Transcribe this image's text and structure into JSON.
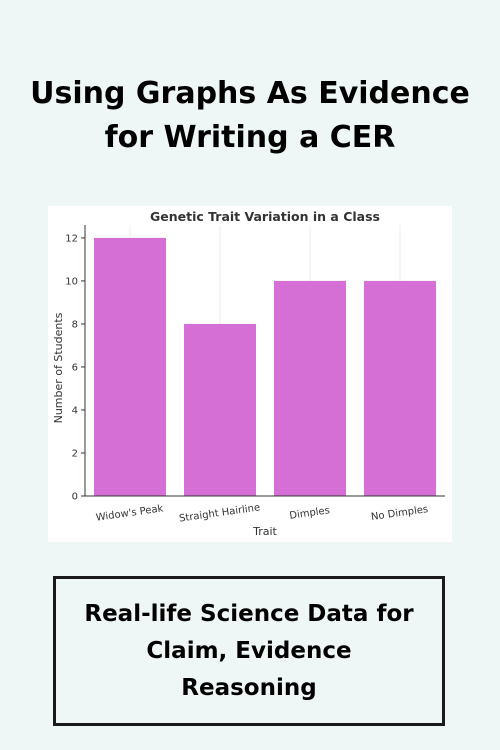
{
  "header": {
    "title_line1": "Using Graphs As Evidence",
    "title_line2": "for Writing a CER"
  },
  "footer": {
    "line1": "Real-life Science Data for",
    "line2": "Claim, Evidence",
    "line3": "Reasoning"
  },
  "chart_data": {
    "type": "bar",
    "title": "Genetic Trait Variation in a Class",
    "xlabel": "Trait",
    "ylabel": "Number of Students",
    "categories": [
      "Widow's Peak",
      "Straight Hairline",
      "Dimples",
      "No Dimples"
    ],
    "values": [
      12,
      8,
      10,
      10
    ],
    "ylim": [
      0,
      12.6
    ],
    "yticks": [
      0,
      2,
      4,
      6,
      8,
      10,
      12
    ],
    "grid": true,
    "bar_color": "#d56fd5"
  }
}
